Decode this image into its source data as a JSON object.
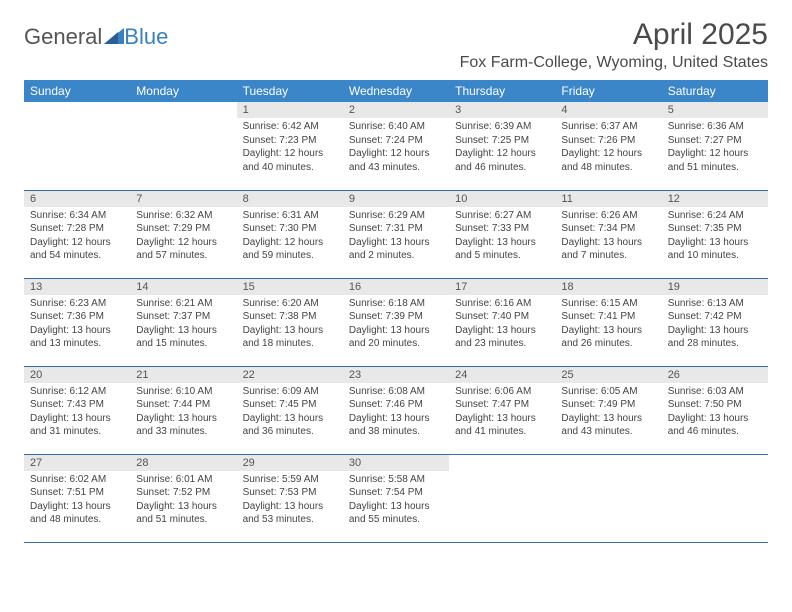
{
  "logo": {
    "text_a": "General",
    "text_b": "Blue"
  },
  "title": "April 2025",
  "location": "Fox Farm-College, Wyoming, United States",
  "colors": {
    "header_bg": "#3a86c8",
    "header_text": "#ffffff",
    "daynum_bg": "#e8e8e8",
    "row_border": "#3a6a9a",
    "body_text": "#444444",
    "title_text": "#4a4a4a"
  },
  "day_headers": [
    "Sunday",
    "Monday",
    "Tuesday",
    "Wednesday",
    "Thursday",
    "Friday",
    "Saturday"
  ],
  "weeks": [
    [
      {
        "empty": true
      },
      {
        "empty": true
      },
      {
        "num": "1",
        "sunrise": "Sunrise: 6:42 AM",
        "sunset": "Sunset: 7:23 PM",
        "day1": "Daylight: 12 hours",
        "day2": "and 40 minutes."
      },
      {
        "num": "2",
        "sunrise": "Sunrise: 6:40 AM",
        "sunset": "Sunset: 7:24 PM",
        "day1": "Daylight: 12 hours",
        "day2": "and 43 minutes."
      },
      {
        "num": "3",
        "sunrise": "Sunrise: 6:39 AM",
        "sunset": "Sunset: 7:25 PM",
        "day1": "Daylight: 12 hours",
        "day2": "and 46 minutes."
      },
      {
        "num": "4",
        "sunrise": "Sunrise: 6:37 AM",
        "sunset": "Sunset: 7:26 PM",
        "day1": "Daylight: 12 hours",
        "day2": "and 48 minutes."
      },
      {
        "num": "5",
        "sunrise": "Sunrise: 6:36 AM",
        "sunset": "Sunset: 7:27 PM",
        "day1": "Daylight: 12 hours",
        "day2": "and 51 minutes."
      }
    ],
    [
      {
        "num": "6",
        "sunrise": "Sunrise: 6:34 AM",
        "sunset": "Sunset: 7:28 PM",
        "day1": "Daylight: 12 hours",
        "day2": "and 54 minutes."
      },
      {
        "num": "7",
        "sunrise": "Sunrise: 6:32 AM",
        "sunset": "Sunset: 7:29 PM",
        "day1": "Daylight: 12 hours",
        "day2": "and 57 minutes."
      },
      {
        "num": "8",
        "sunrise": "Sunrise: 6:31 AM",
        "sunset": "Sunset: 7:30 PM",
        "day1": "Daylight: 12 hours",
        "day2": "and 59 minutes."
      },
      {
        "num": "9",
        "sunrise": "Sunrise: 6:29 AM",
        "sunset": "Sunset: 7:31 PM",
        "day1": "Daylight: 13 hours",
        "day2": "and 2 minutes."
      },
      {
        "num": "10",
        "sunrise": "Sunrise: 6:27 AM",
        "sunset": "Sunset: 7:33 PM",
        "day1": "Daylight: 13 hours",
        "day2": "and 5 minutes."
      },
      {
        "num": "11",
        "sunrise": "Sunrise: 6:26 AM",
        "sunset": "Sunset: 7:34 PM",
        "day1": "Daylight: 13 hours",
        "day2": "and 7 minutes."
      },
      {
        "num": "12",
        "sunrise": "Sunrise: 6:24 AM",
        "sunset": "Sunset: 7:35 PM",
        "day1": "Daylight: 13 hours",
        "day2": "and 10 minutes."
      }
    ],
    [
      {
        "num": "13",
        "sunrise": "Sunrise: 6:23 AM",
        "sunset": "Sunset: 7:36 PM",
        "day1": "Daylight: 13 hours",
        "day2": "and 13 minutes."
      },
      {
        "num": "14",
        "sunrise": "Sunrise: 6:21 AM",
        "sunset": "Sunset: 7:37 PM",
        "day1": "Daylight: 13 hours",
        "day2": "and 15 minutes."
      },
      {
        "num": "15",
        "sunrise": "Sunrise: 6:20 AM",
        "sunset": "Sunset: 7:38 PM",
        "day1": "Daylight: 13 hours",
        "day2": "and 18 minutes."
      },
      {
        "num": "16",
        "sunrise": "Sunrise: 6:18 AM",
        "sunset": "Sunset: 7:39 PM",
        "day1": "Daylight: 13 hours",
        "day2": "and 20 minutes."
      },
      {
        "num": "17",
        "sunrise": "Sunrise: 6:16 AM",
        "sunset": "Sunset: 7:40 PM",
        "day1": "Daylight: 13 hours",
        "day2": "and 23 minutes."
      },
      {
        "num": "18",
        "sunrise": "Sunrise: 6:15 AM",
        "sunset": "Sunset: 7:41 PM",
        "day1": "Daylight: 13 hours",
        "day2": "and 26 minutes."
      },
      {
        "num": "19",
        "sunrise": "Sunrise: 6:13 AM",
        "sunset": "Sunset: 7:42 PM",
        "day1": "Daylight: 13 hours",
        "day2": "and 28 minutes."
      }
    ],
    [
      {
        "num": "20",
        "sunrise": "Sunrise: 6:12 AM",
        "sunset": "Sunset: 7:43 PM",
        "day1": "Daylight: 13 hours",
        "day2": "and 31 minutes."
      },
      {
        "num": "21",
        "sunrise": "Sunrise: 6:10 AM",
        "sunset": "Sunset: 7:44 PM",
        "day1": "Daylight: 13 hours",
        "day2": "and 33 minutes."
      },
      {
        "num": "22",
        "sunrise": "Sunrise: 6:09 AM",
        "sunset": "Sunset: 7:45 PM",
        "day1": "Daylight: 13 hours",
        "day2": "and 36 minutes."
      },
      {
        "num": "23",
        "sunrise": "Sunrise: 6:08 AM",
        "sunset": "Sunset: 7:46 PM",
        "day1": "Daylight: 13 hours",
        "day2": "and 38 minutes."
      },
      {
        "num": "24",
        "sunrise": "Sunrise: 6:06 AM",
        "sunset": "Sunset: 7:47 PM",
        "day1": "Daylight: 13 hours",
        "day2": "and 41 minutes."
      },
      {
        "num": "25",
        "sunrise": "Sunrise: 6:05 AM",
        "sunset": "Sunset: 7:49 PM",
        "day1": "Daylight: 13 hours",
        "day2": "and 43 minutes."
      },
      {
        "num": "26",
        "sunrise": "Sunrise: 6:03 AM",
        "sunset": "Sunset: 7:50 PM",
        "day1": "Daylight: 13 hours",
        "day2": "and 46 minutes."
      }
    ],
    [
      {
        "num": "27",
        "sunrise": "Sunrise: 6:02 AM",
        "sunset": "Sunset: 7:51 PM",
        "day1": "Daylight: 13 hours",
        "day2": "and 48 minutes."
      },
      {
        "num": "28",
        "sunrise": "Sunrise: 6:01 AM",
        "sunset": "Sunset: 7:52 PM",
        "day1": "Daylight: 13 hours",
        "day2": "and 51 minutes."
      },
      {
        "num": "29",
        "sunrise": "Sunrise: 5:59 AM",
        "sunset": "Sunset: 7:53 PM",
        "day1": "Daylight: 13 hours",
        "day2": "and 53 minutes."
      },
      {
        "num": "30",
        "sunrise": "Sunrise: 5:58 AM",
        "sunset": "Sunset: 7:54 PM",
        "day1": "Daylight: 13 hours",
        "day2": "and 55 minutes."
      },
      {
        "empty": true
      },
      {
        "empty": true
      },
      {
        "empty": true
      }
    ]
  ]
}
